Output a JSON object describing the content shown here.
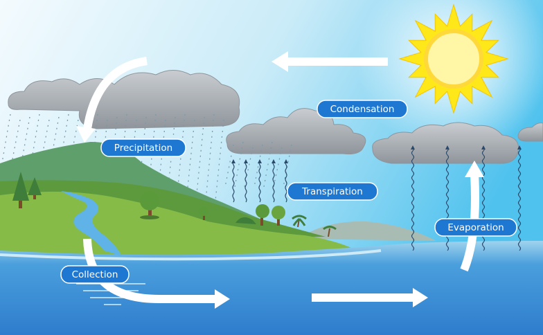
{
  "labels": [
    "Condensation",
    "Precipitation",
    "Transpiration",
    "Evaporation",
    "Collection"
  ]
}
